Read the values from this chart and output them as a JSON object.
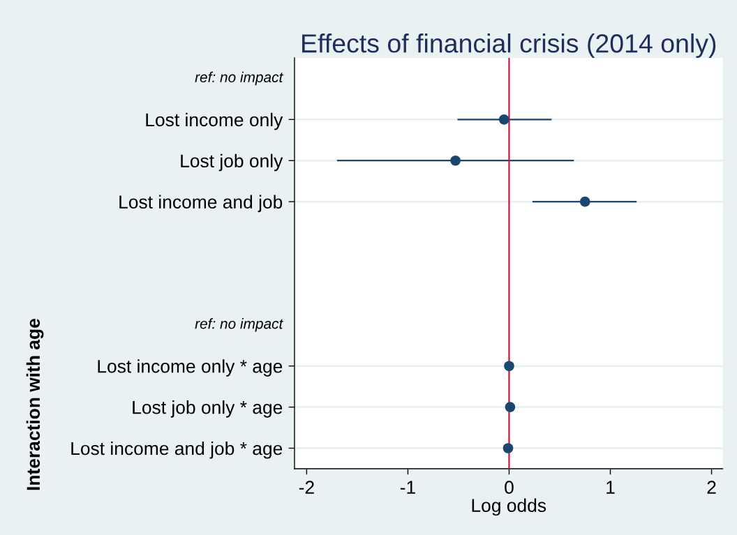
{
  "chart_data": {
    "type": "scatter",
    "orientation": "horizontal",
    "title": "Effects of financial crisis (2014 only)",
    "xlabel": "Log odds",
    "ylabel": "Interaction with age",
    "categories": [
      "ref: no impact",
      "Lost income only",
      "Lost job only",
      "Lost income and job",
      null,
      null,
      "ref: no impact",
      "Lost income only * age",
      "Lost job only * age",
      "Lost income and job * age"
    ],
    "values": [
      null,
      -0.05,
      -0.53,
      0.75,
      null,
      null,
      null,
      0,
      0.01,
      -0.01
    ],
    "errors": [
      null,
      [
        -0.51,
        0.42
      ],
      [
        -1.7,
        0.64
      ],
      [
        0.23,
        1.26
      ],
      null,
      null,
      null,
      null,
      null,
      null
    ],
    "color": "#1a476f",
    "marker": "circle",
    "xlim": [
      -2.12,
      2.11
    ],
    "xticks": [
      -2,
      -1,
      0,
      1,
      2
    ],
    "ref_lines": [
      {
        "axis": "x",
        "value": 0,
        "color": "#c9163e"
      }
    ],
    "grid": "y"
  }
}
